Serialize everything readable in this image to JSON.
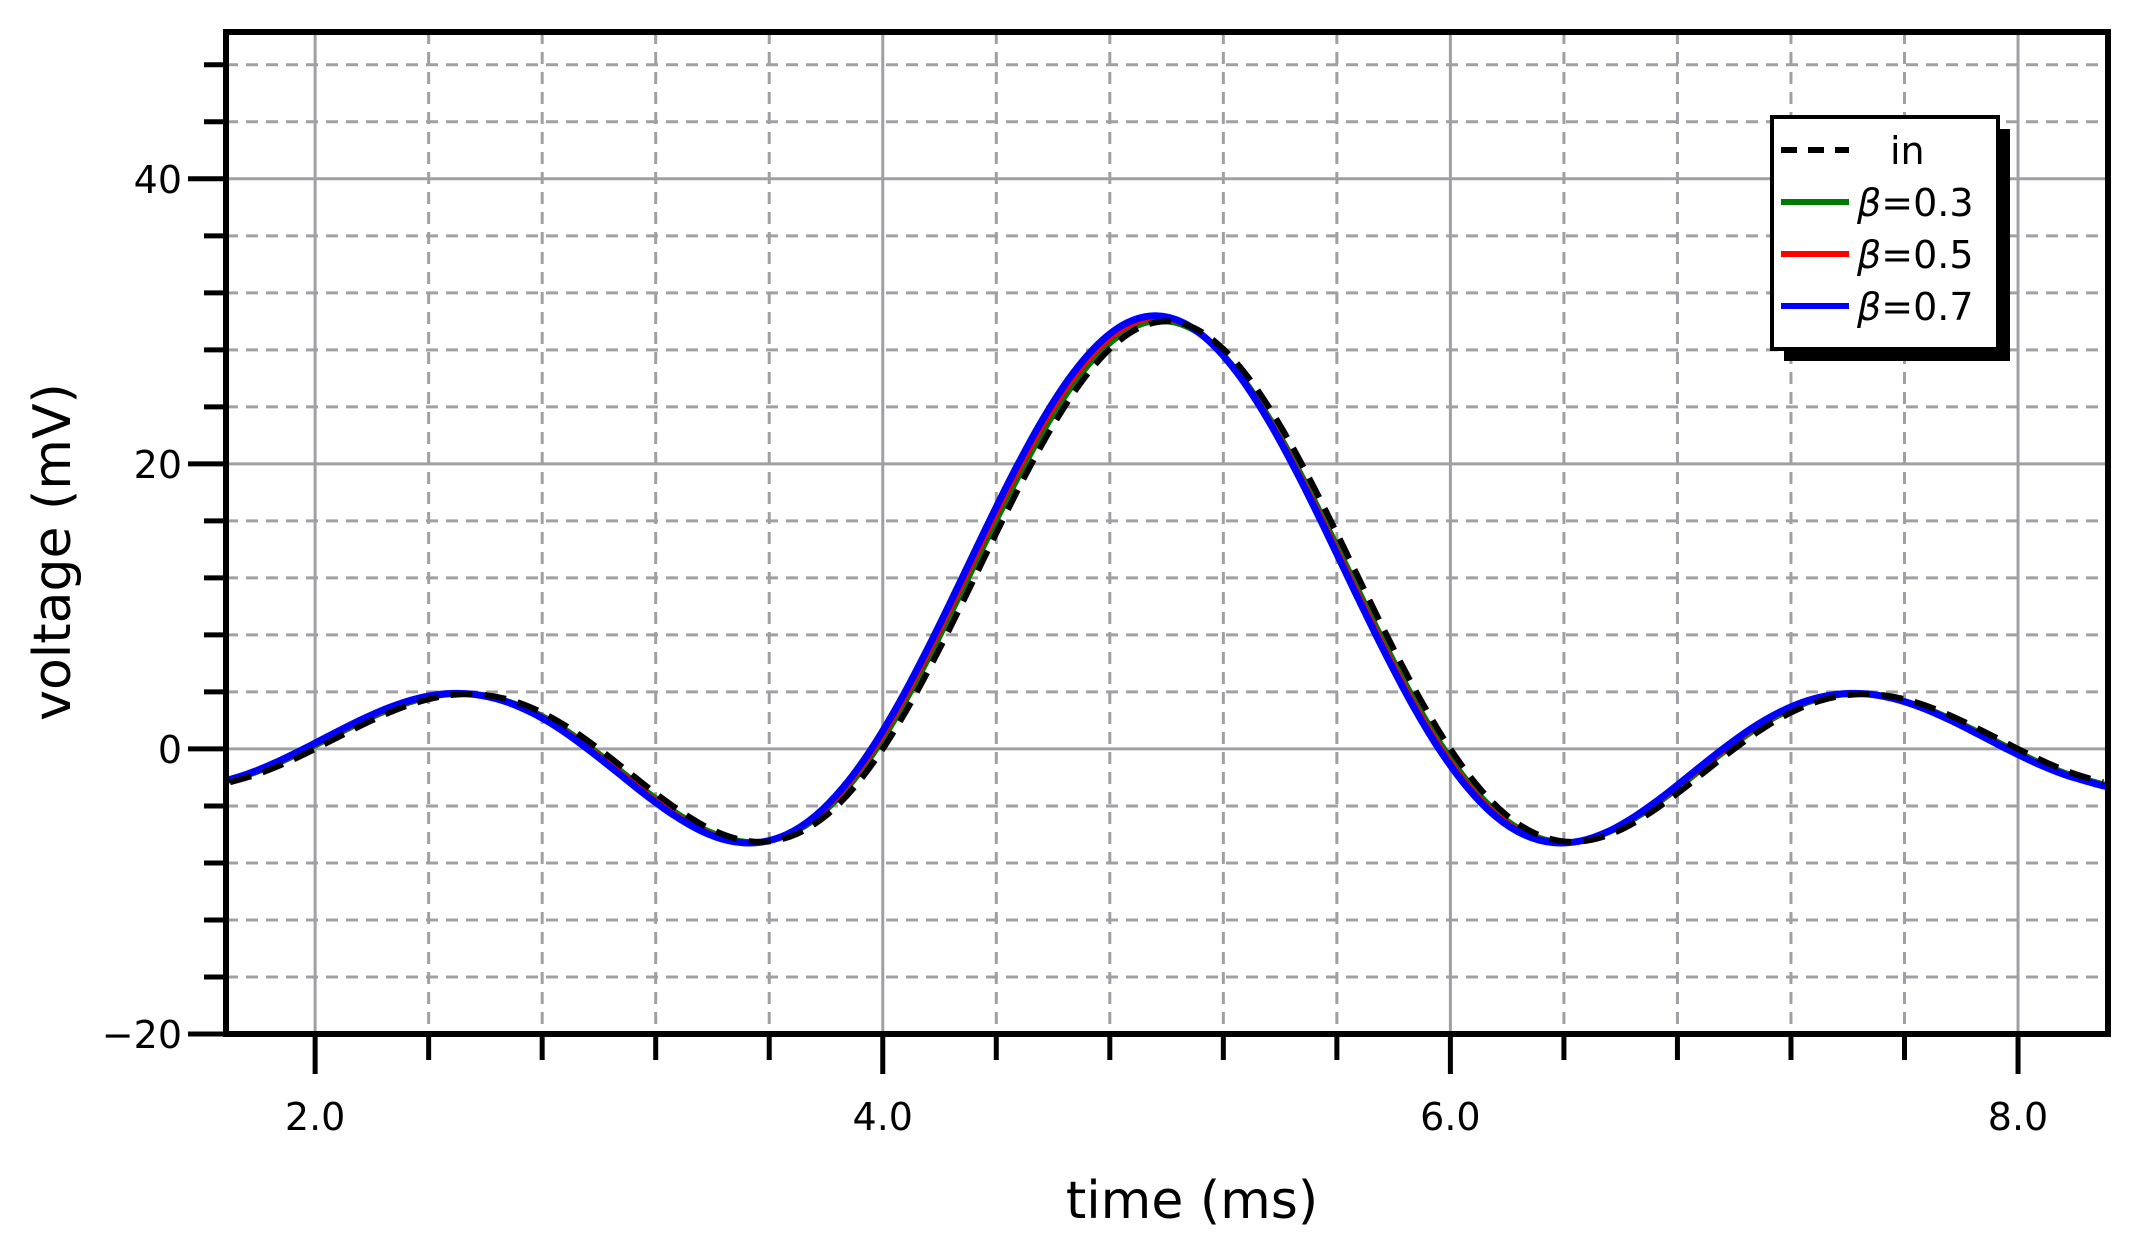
{
  "chart_data": {
    "type": "line",
    "title": "",
    "xlabel": "time (ms)",
    "ylabel": "voltage (mV)",
    "xlim": [
      1.686,
      8.317
    ],
    "ylim": [
      -20,
      50.3
    ],
    "x_major_ticks": [
      2.0,
      4.0,
      6.0,
      8.0
    ],
    "x_tick_labels": [
      "2.0",
      "4.0",
      "6.0",
      "8.0"
    ],
    "x_minor_step": 0.4,
    "y_major_ticks": [
      -20,
      0,
      20,
      40
    ],
    "y_tick_labels": [
      "−20",
      "0",
      "20",
      "40"
    ],
    "y_minor_step": 4,
    "grid": true,
    "legend_position": "upper right",
    "legend": [
      {
        "label": "in",
        "prefix": "",
        "value": "in",
        "color": "#000000",
        "dashed": true
      },
      {
        "label": "β=0.3",
        "prefix": "β",
        "value": "=0.3",
        "color": "#007a00",
        "dashed": false
      },
      {
        "label": "β=0.5",
        "prefix": "β",
        "value": "=0.5",
        "color": "#ff0000",
        "dashed": false
      },
      {
        "label": "β=0.7",
        "prefix": "β",
        "value": "=0.7",
        "color": "#0000ff",
        "dashed": false
      }
    ],
    "series": [
      {
        "name": "in",
        "color": "#000000",
        "dashed": true,
        "width": 6,
        "x": [
          1.7,
          1.8,
          1.9,
          2.0,
          2.1,
          2.2,
          2.3,
          2.4,
          2.5,
          2.6,
          2.7,
          2.8,
          2.9,
          3.0,
          3.1,
          3.2,
          3.3,
          3.4,
          3.5,
          3.6,
          3.7,
          3.8,
          3.9,
          4.0,
          4.1,
          4.2,
          4.3,
          4.4,
          4.5,
          4.6,
          4.7,
          4.8,
          4.9,
          5.0,
          5.1,
          5.2,
          5.3,
          5.4,
          5.5,
          5.6,
          5.7,
          5.8,
          5.9,
          6.0,
          6.1,
          6.2,
          6.3,
          6.4,
          6.5,
          6.6,
          6.7,
          6.8,
          6.9,
          7.0,
          7.1,
          7.2,
          7.3,
          7.4,
          7.5,
          7.6,
          7.7,
          7.8,
          7.9,
          8.0,
          8.1,
          8.2,
          8.3
        ],
        "values": [
          -2.34,
          -1.75,
          -0.95,
          0,
          1.02,
          2.0,
          2.86,
          3.49,
          3.82,
          3.78,
          3.36,
          2.55,
          1.41,
          0,
          -1.55,
          -3.12,
          -4.54,
          -5.68,
          -6.37,
          -6.49,
          -5.94,
          -4.68,
          -2.68,
          0,
          3.28,
          7.02,
          11.04,
          15.14,
          19.1,
          22.7,
          25.75,
          28.06,
          29.51,
          30.0,
          29.51,
          28.06,
          25.75,
          22.7,
          19.1,
          15.14,
          11.04,
          7.02,
          3.28,
          0,
          -2.68,
          -4.68,
          -5.94,
          -6.49,
          -6.37,
          -5.68,
          -4.54,
          -3.12,
          -1.55,
          0,
          1.41,
          2.55,
          3.36,
          3.78,
          3.82,
          3.49,
          2.86,
          2.0,
          1.02,
          0,
          -0.95,
          -1.75,
          -2.34
        ]
      },
      {
        "name": "β=0.3",
        "color": "#007a00",
        "dashed": false,
        "width": 5,
        "x": [
          1.68,
          1.78,
          1.88,
          1.98,
          2.08,
          2.18,
          2.28,
          2.38,
          2.48,
          2.58,
          2.68,
          2.78,
          2.88,
          2.98,
          3.08,
          3.18,
          3.28,
          3.38,
          3.48,
          3.58,
          3.68,
          3.78,
          3.88,
          3.98,
          4.08,
          4.18,
          4.28,
          4.38,
          4.48,
          4.58,
          4.68,
          4.78,
          4.88,
          4.98,
          5.08,
          5.18,
          5.28,
          5.38,
          5.48,
          5.58,
          5.68,
          5.78,
          5.88,
          5.98,
          6.08,
          6.18,
          6.28,
          6.38,
          6.48,
          6.58,
          6.68,
          6.78,
          6.88,
          6.98,
          7.08,
          7.18,
          7.28,
          7.38,
          7.48,
          7.58,
          7.68,
          7.78,
          7.88,
          7.98,
          8.08,
          8.18,
          8.28,
          8.32
        ],
        "values": [
          -2.34,
          -1.75,
          -0.95,
          0,
          1.02,
          2.0,
          2.86,
          3.49,
          3.82,
          3.78,
          3.36,
          2.55,
          1.41,
          0,
          -1.55,
          -3.12,
          -4.54,
          -5.68,
          -6.37,
          -6.49,
          -5.94,
          -4.68,
          -2.68,
          0,
          3.28,
          7.02,
          11.04,
          15.14,
          19.1,
          22.7,
          25.75,
          28.06,
          29.51,
          30.0,
          29.51,
          28.06,
          25.75,
          22.7,
          19.1,
          15.14,
          11.04,
          7.02,
          3.28,
          0,
          -2.68,
          -4.68,
          -5.94,
          -6.49,
          -6.37,
          -5.68,
          -4.54,
          -3.12,
          -1.55,
          0,
          1.41,
          2.55,
          3.36,
          3.78,
          3.82,
          3.49,
          2.86,
          2.0,
          1.02,
          0,
          -0.95,
          -1.75,
          -2.34,
          -2.55
        ]
      },
      {
        "name": "β=0.5",
        "color": "#ff0000",
        "dashed": false,
        "width": 5,
        "x": [
          1.67,
          1.77,
          1.87,
          1.97,
          2.07,
          2.17,
          2.27,
          2.37,
          2.47,
          2.57,
          2.67,
          2.77,
          2.87,
          2.97,
          3.07,
          3.17,
          3.27,
          3.37,
          3.47,
          3.57,
          3.67,
          3.77,
          3.87,
          3.97,
          4.07,
          4.17,
          4.27,
          4.37,
          4.47,
          4.57,
          4.67,
          4.77,
          4.87,
          4.97,
          5.07,
          5.17,
          5.27,
          5.37,
          5.47,
          5.57,
          5.67,
          5.77,
          5.87,
          5.97,
          6.07,
          6.17,
          6.27,
          6.37,
          6.47,
          6.57,
          6.67,
          6.77,
          6.87,
          6.97,
          7.07,
          7.17,
          7.27,
          7.37,
          7.47,
          7.57,
          7.67,
          7.77,
          7.87,
          7.97,
          8.07,
          8.17,
          8.27,
          8.32
        ],
        "values": [
          -2.36,
          -1.76,
          -0.96,
          0,
          1.03,
          2.01,
          2.88,
          3.51,
          3.85,
          3.81,
          3.38,
          2.57,
          1.42,
          0,
          -1.56,
          -3.14,
          -4.57,
          -5.72,
          -6.41,
          -6.54,
          -5.98,
          -4.71,
          -2.7,
          0,
          3.3,
          7.07,
          11.12,
          15.25,
          19.23,
          22.86,
          25.93,
          28.26,
          29.72,
          30.21,
          29.72,
          28.26,
          25.93,
          22.86,
          19.23,
          15.25,
          11.12,
          7.07,
          3.3,
          0,
          -2.7,
          -4.71,
          -5.98,
          -6.54,
          -6.41,
          -5.72,
          -4.57,
          -3.14,
          -1.56,
          0,
          1.42,
          2.57,
          3.38,
          3.81,
          3.85,
          3.51,
          2.88,
          2.01,
          1.03,
          0,
          -0.96,
          -1.76,
          -2.36,
          -2.62
        ]
      },
      {
        "name": "β=0.7",
        "color": "#0000ff",
        "dashed": false,
        "width": 7,
        "x": [
          1.66,
          1.76,
          1.86,
          1.96,
          2.06,
          2.16,
          2.26,
          2.36,
          2.46,
          2.56,
          2.66,
          2.76,
          2.86,
          2.96,
          3.06,
          3.16,
          3.26,
          3.36,
          3.46,
          3.56,
          3.66,
          3.76,
          3.86,
          3.96,
          4.06,
          4.16,
          4.26,
          4.36,
          4.46,
          4.56,
          4.66,
          4.76,
          4.86,
          4.96,
          5.06,
          5.16,
          5.26,
          5.36,
          5.46,
          5.56,
          5.66,
          5.76,
          5.86,
          5.96,
          6.06,
          6.16,
          6.26,
          6.36,
          6.46,
          6.56,
          6.66,
          6.76,
          6.86,
          6.96,
          7.06,
          7.16,
          7.26,
          7.36,
          7.46,
          7.56,
          7.66,
          7.76,
          7.86,
          7.96,
          8.06,
          8.16,
          8.26,
          8.32
        ],
        "values": [
          -2.37,
          -1.77,
          -0.96,
          0,
          1.03,
          2.03,
          2.9,
          3.54,
          3.87,
          3.83,
          3.4,
          2.58,
          1.43,
          0,
          -1.57,
          -3.16,
          -4.6,
          -5.75,
          -6.45,
          -6.57,
          -6.02,
          -4.74,
          -2.71,
          0,
          3.32,
          7.11,
          11.18,
          15.34,
          19.35,
          23.0,
          26.08,
          28.42,
          29.89,
          30.39,
          29.89,
          28.42,
          26.08,
          23.0,
          19.35,
          15.34,
          11.18,
          7.11,
          3.32,
          0,
          -2.71,
          -4.74,
          -6.02,
          -6.57,
          -6.45,
          -5.75,
          -4.6,
          -3.16,
          -1.57,
          0,
          1.43,
          2.58,
          3.4,
          3.83,
          3.87,
          3.54,
          2.9,
          2.03,
          1.03,
          0,
          -0.96,
          -1.77,
          -2.37,
          -2.68
        ]
      }
    ]
  },
  "colors": {
    "grid_major": "#a0a0a4",
    "grid_minor": "#a0a0a4",
    "axis": "#000000",
    "legend_shadow": "#000000"
  }
}
